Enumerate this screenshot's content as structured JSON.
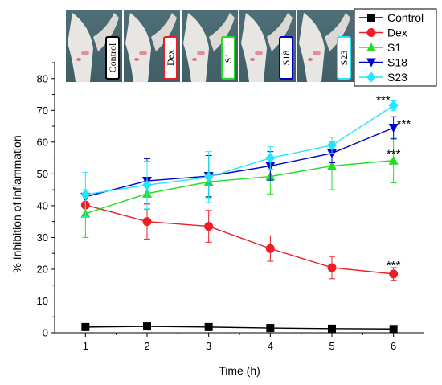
{
  "chart_data": {
    "type": "line",
    "xlabel": "Time (h)",
    "ylabel": "% Inhibition of inflammation",
    "xlim": [
      0.5,
      6.5
    ],
    "ylim": [
      0,
      85
    ],
    "x": [
      1,
      2,
      3,
      4,
      5,
      6
    ],
    "xticks": [
      "1",
      "2",
      "3",
      "4",
      "5",
      "6"
    ],
    "yticks": [
      "0",
      "10",
      "20",
      "30",
      "40",
      "50",
      "60",
      "70",
      "80"
    ],
    "grid": false,
    "legend_placement": "top-right",
    "series": [
      {
        "name": "Control",
        "color": "#000000",
        "marker": "square",
        "values": [
          1.8,
          2.0,
          1.8,
          1.5,
          1.3,
          1.2
        ],
        "errors": [
          0,
          0,
          0,
          0,
          0,
          0
        ]
      },
      {
        "name": "Dex",
        "color": "#ee1c25",
        "marker": "circle",
        "values": [
          40.2,
          35.0,
          33.5,
          26.5,
          20.5,
          18.5
        ],
        "errors": [
          0,
          5.5,
          5.0,
          4.0,
          3.5,
          2.0
        ]
      },
      {
        "name": "S1",
        "color": "#22dd22",
        "marker": "triangle-up",
        "values": [
          37.5,
          43.8,
          47.5,
          49.2,
          52.5,
          54.2
        ],
        "errors": [
          7.5,
          5.0,
          5.0,
          5.5,
          7.5,
          7.0
        ]
      },
      {
        "name": "S18",
        "color": "#0000cc",
        "marker": "triangle-down",
        "values": [
          42.8,
          47.8,
          49.3,
          52.5,
          56.5,
          64.5
        ],
        "errors": [
          0,
          7.0,
          6.5,
          4.5,
          3.0,
          3.5
        ]
      },
      {
        "name": "S23",
        "color": "#22e5ff",
        "marker": "diamond",
        "values": [
          43.5,
          46.5,
          49.0,
          55.0,
          59.0,
          71.5
        ],
        "errors": [
          7.0,
          7.5,
          8.0,
          3.5,
          2.5,
          1.5
        ]
      }
    ],
    "annotations": [
      {
        "text": "***",
        "x": 6,
        "y": 73.5,
        "side": "left"
      },
      {
        "text": "***",
        "x": 6,
        "y": 66.0,
        "side": "right"
      },
      {
        "text": "***",
        "x": 6,
        "y": 56.5,
        "side": "center"
      },
      {
        "text": "***",
        "x": 6,
        "y": 21.5,
        "side": "center"
      }
    ],
    "photos": [
      {
        "label": "Control",
        "border_color": "#000000"
      },
      {
        "label": "Dex",
        "border_color": "#ee1c25"
      },
      {
        "label": "S1",
        "border_color": "#22dd22"
      },
      {
        "label": "S18",
        "border_color": "#0000cc"
      },
      {
        "label": "S23",
        "border_color": "#22e5ff"
      }
    ]
  }
}
